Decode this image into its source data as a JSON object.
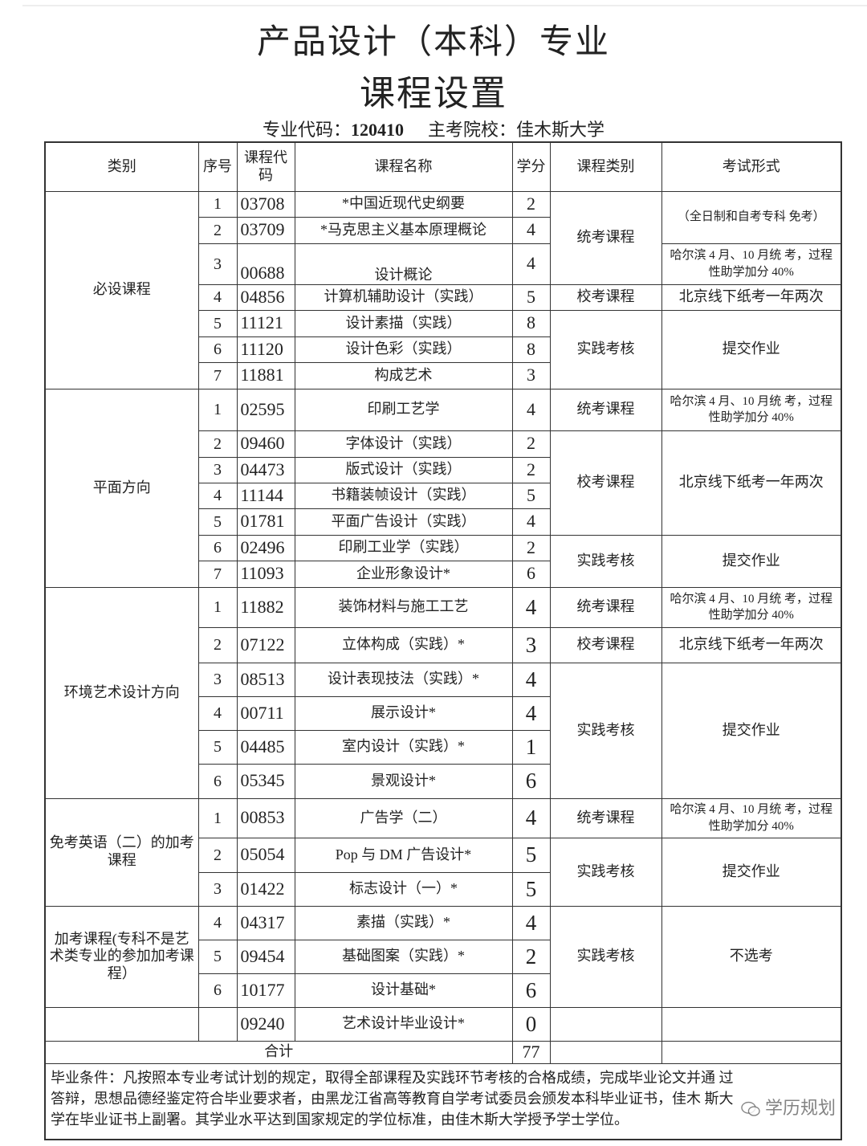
{
  "title_line1": "产品设计（本科）专业",
  "title_line2": "课程设置",
  "subtitle": {
    "code_label": "专业代码：",
    "code": "120410",
    "school": "主考院校：佳木斯大学"
  },
  "headers": {
    "category": "类别",
    "no": "序号",
    "code": "课程代码",
    "name": "课程名称",
    "credit": "学分",
    "type": "课程类别",
    "exam": "考试形式"
  },
  "groups": [
    {
      "category": "必设课程",
      "rows": [
        {
          "no": "1",
          "code": "03708",
          "name": "*中国近现代史纲要",
          "credit": "2"
        },
        {
          "no": "2",
          "code": "03709",
          "name": "*马克思主义基本原理概论",
          "credit": "4"
        },
        {
          "no": "3",
          "code": "00688",
          "name": "设计概论",
          "credit": "4"
        },
        {
          "no": "4",
          "code": "04856",
          "name": "计算机辅助设计（实践）",
          "credit": "5"
        },
        {
          "no": "5",
          "code": "11121",
          "name": "设计素描（实践）",
          "credit": "8"
        },
        {
          "no": "6",
          "code": "11120",
          "name": "设计色彩（实践）",
          "credit": "8"
        },
        {
          "no": "7",
          "code": "11881",
          "name": "构成艺术",
          "credit": "3"
        }
      ],
      "types": [
        "统考课程",
        "校考课程",
        "实践考核"
      ],
      "exams": [
        "（全日制和自考专科 免考）",
        "哈尔滨 4 月、10 月统 考，过程性助学加分 40%",
        "北京线下纸考一年两次",
        "提交作业"
      ]
    },
    {
      "category": "平面方向",
      "rows": [
        {
          "no": "1",
          "code": "02595",
          "name": "印刷工艺学",
          "credit": "4"
        },
        {
          "no": "2",
          "code": "09460",
          "name": "字体设计（实践）",
          "credit": "2"
        },
        {
          "no": "3",
          "code": "04473",
          "name": "版式设计（实践）",
          "credit": "2"
        },
        {
          "no": "4",
          "code": "11144",
          "name": "书籍装帧设计（实践）",
          "credit": "5"
        },
        {
          "no": "5",
          "code": "01781",
          "name": "平面广告设计（实践）",
          "credit": "4"
        },
        {
          "no": "6",
          "code": "02496",
          "name": "印刷工业学（实践）",
          "credit": "2"
        },
        {
          "no": "7",
          "code": "11093",
          "name": "企业形象设计*",
          "credit": "6"
        }
      ],
      "types": [
        "统考课程",
        "校考课程",
        "实践考核"
      ],
      "exams": [
        "哈尔滨 4 月、10 月统 考，过程性助学加分 40%",
        "北京线下纸考一年两次",
        "提交作业"
      ]
    },
    {
      "category": "环境艺术设计方向",
      "rows": [
        {
          "no": "1",
          "code": "11882",
          "name": "装饰材料与施工工艺",
          "credit": "4"
        },
        {
          "no": "2",
          "code": "07122",
          "name": "立体构成（实践）*",
          "credit": "3"
        },
        {
          "no": "3",
          "code": "08513",
          "name": "设计表现技法（实践）*",
          "credit": "4"
        },
        {
          "no": "4",
          "code": "00711",
          "name": "展示设计*",
          "credit": "4"
        },
        {
          "no": "5",
          "code": "04485",
          "name": "室内设计（实践）*",
          "credit": "1"
        },
        {
          "no": "6",
          "code": "05345",
          "name": "景观设计*",
          "credit": "6"
        }
      ],
      "types": [
        "统考课程",
        "校考课程",
        "实践考核"
      ],
      "exams": [
        "哈尔滨 4 月、10 月统 考，过程性助学加分 40%",
        "北京线下纸考一年两次",
        "提交作业"
      ]
    },
    {
      "category": "免考英语（二）的加考课程",
      "rows": [
        {
          "no": "1",
          "code": "00853",
          "name": "广告学（二）",
          "credit": "4"
        },
        {
          "no": "2",
          "code": "05054",
          "name": "Pop 与 DM 广告设计*",
          "credit": "5"
        },
        {
          "no": "3",
          "code": "01422",
          "name": "标志设计（一）*",
          "credit": "5"
        }
      ],
      "types": [
        "统考课程",
        "实践考核"
      ],
      "exams": [
        "哈尔滨 4 月、10 月统 考，过程性助学加分 40%",
        "提交作业"
      ]
    },
    {
      "category": "加考课程(专科不是艺术类专业的参加加考课程）",
      "rows": [
        {
          "no": "4",
          "code": "04317",
          "name": "素描（实践）*",
          "credit": "4"
        },
        {
          "no": "5",
          "code": "09454",
          "name": "基础图案（实践）*",
          "credit": "2"
        },
        {
          "no": "6",
          "code": "10177",
          "name": "设计基础*",
          "credit": "6"
        }
      ],
      "types": [
        "实践考核"
      ],
      "exams": [
        "不选考"
      ]
    }
  ],
  "last_row": {
    "code": "09240",
    "name": "艺术设计毕业设计*",
    "credit": "0"
  },
  "total": {
    "label": "合计",
    "credit": "77"
  },
  "footer": "毕业条件：凡按照本专业考试计划的规定，取得全部课程及实践环节考核的合格成绩，完成毕业论文并通 过答辩，思想品德经鉴定符合毕业要求者，由黑龙江省高等教育自学考试委员会颁发本科毕业证书，佳木 斯大学在毕业证书上副署。其学业水平达到国家规定的学位标准，由佳木斯大学授予学士学位。",
  "watermark": "学历规划"
}
